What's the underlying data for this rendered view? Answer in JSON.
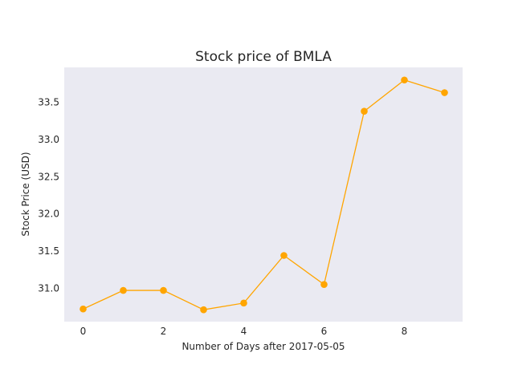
{
  "chart_data": {
    "type": "line",
    "title": "Stock price of BMLA",
    "xlabel": "Number of Days after 2017-05-05",
    "ylabel": "Stock Price (USD)",
    "x": [
      0,
      1,
      2,
      3,
      4,
      5,
      6,
      7,
      8,
      9
    ],
    "series": [
      {
        "values": [
          30.72,
          30.97,
          30.97,
          30.71,
          30.8,
          31.44,
          31.05,
          33.38,
          33.8,
          33.63
        ]
      }
    ],
    "xlim": [
      -0.47,
      9.45
    ],
    "ylim": [
      30.55,
      33.97
    ],
    "xticks": [
      0,
      2,
      4,
      6,
      8
    ],
    "yticks": [
      31.0,
      31.5,
      32.0,
      32.5,
      33.0,
      33.5
    ],
    "ytick_labels": [
      "31.0",
      "31.5",
      "32.0",
      "32.5",
      "33.0",
      "33.5"
    ],
    "grid": false,
    "colors": {
      "line": "#FFA500",
      "background": "#EAEAF2"
    }
  }
}
